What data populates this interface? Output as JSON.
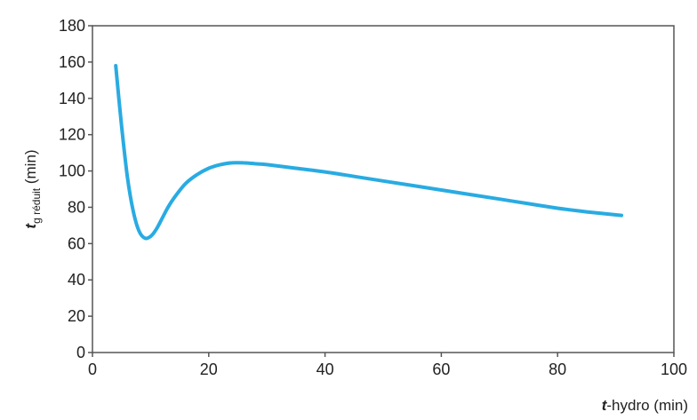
{
  "chart_data": {
    "type": "line",
    "xlabel": {
      "var": "t",
      "rest": "-hydro (min)"
    },
    "ylabel": {
      "var": "t",
      "sub": "g réduit",
      "rest": " (min)"
    },
    "xlim": [
      0,
      100
    ],
    "ylim": [
      0,
      180
    ],
    "xticks": [
      0,
      20,
      40,
      60,
      80,
      100
    ],
    "yticks": [
      0,
      20,
      40,
      60,
      80,
      100,
      120,
      140,
      160,
      180
    ],
    "grid": false,
    "series": [
      {
        "color": "#29abe2",
        "x": [
          4,
          5,
          6,
          7,
          8,
          9,
          10,
          11,
          12,
          13,
          14,
          16,
          18,
          20,
          22,
          24,
          26,
          28,
          30,
          35,
          40,
          45,
          50,
          55,
          60,
          65,
          70,
          75,
          80,
          85,
          91
        ],
        "y": [
          158,
          125,
          97,
          78,
          67,
          63,
          64,
          68,
          74,
          80,
          85,
          93,
          98,
          101.5,
          103.5,
          104.5,
          104.5,
          104,
          103.5,
          101.5,
          99.5,
          97,
          94.5,
          92,
          89.5,
          87,
          84.5,
          82,
          79.5,
          77.5,
          75.5
        ]
      }
    ]
  }
}
